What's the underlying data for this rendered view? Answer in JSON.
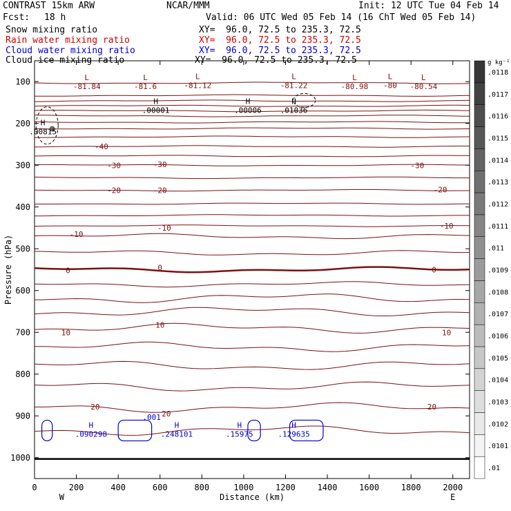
{
  "header": {
    "title": "CONTRAST 15km ARW",
    "center": "NCAR/MMM",
    "init": "Init: 12 UTC Tue 04 Feb 14",
    "fcst_label": "Fcst:",
    "fcst_value": "18 h",
    "valid": "Valid: 06 UTC Wed 05 Feb 14 (16 ChT Wed 05 Feb 14)"
  },
  "fields": [
    {
      "name": "Snow mixing ratio",
      "xy": "XY=  96.0, 72.5 to 235.3, 72.5",
      "color": "#000000"
    },
    {
      "name": "Rain water mixing ratio",
      "xy": "XY=  96.0, 72.5 to 235.3, 72.5",
      "color": "#cc0000"
    },
    {
      "name": "Cloud water mixing ratio",
      "xy": "XY=  96.0, 72.5 to 235.3, 72.5",
      "color": "#0000cc"
    },
    {
      "name": "Cloud ice mixing ratio",
      "xy": "XY=  96.0, 72.5 to 235.3, 72.5",
      "color": "#000000"
    }
  ],
  "chart_data": {
    "type": "contour",
    "xlabel": "Distance (km)",
    "ylabel": "Pressure (hPa)",
    "xlim": [
      0,
      2080
    ],
    "ylim": [
      1050,
      50
    ],
    "x_ticks": [
      0,
      200,
      400,
      600,
      800,
      1000,
      1200,
      1400,
      1600,
      1800,
      2000
    ],
    "y_ticks": [
      100,
      200,
      300,
      400,
      500,
      600,
      700,
      800,
      900,
      1000
    ],
    "x_end_labels": {
      "left": "W",
      "right": "E"
    },
    "colorbar": {
      "unit": "g kg⁻¹",
      "levels": [
        ".01",
        ".0101",
        ".0102",
        ".0103",
        ".0104",
        ".0105",
        ".0106",
        ".0107",
        ".0108",
        ".0109",
        ".011",
        ".0111",
        ".0112",
        ".0113",
        ".0114",
        ".0115",
        ".0116",
        ".0117",
        ".0118"
      ]
    },
    "temperature_contour_color": "#7a1010",
    "temperature_labels": [
      {
        "text": "-40",
        "x": 320,
        "p": 255
      },
      {
        "text": "-30",
        "x": 380,
        "p": 300
      },
      {
        "text": "-30",
        "x": 600,
        "p": 298
      },
      {
        "text": "-30",
        "x": 1830,
        "p": 300
      },
      {
        "text": "-20",
        "x": 380,
        "p": 360
      },
      {
        "text": "-20",
        "x": 600,
        "p": 360
      },
      {
        "text": "-20",
        "x": 1940,
        "p": 358
      },
      {
        "text": "-10",
        "x": 200,
        "p": 465
      },
      {
        "text": "-10",
        "x": 620,
        "p": 450
      },
      {
        "text": "-10",
        "x": 1970,
        "p": 445
      },
      {
        "text": "0",
        "x": 160,
        "p": 552
      },
      {
        "text": "0",
        "x": 600,
        "p": 545
      },
      {
        "text": "0",
        "x": 1910,
        "p": 550
      },
      {
        "text": "10",
        "x": 150,
        "p": 700
      },
      {
        "text": "10",
        "x": 600,
        "p": 682
      },
      {
        "text": "10",
        "x": 1970,
        "p": 700
      },
      {
        "text": "20",
        "x": 290,
        "p": 878
      },
      {
        "text": "20",
        "x": 630,
        "p": 895
      },
      {
        "text": "20",
        "x": 1900,
        "p": 878
      }
    ],
    "temperature_extrema": [
      {
        "kind": "L",
        "value": "-81.84",
        "x": 250,
        "p": 103
      },
      {
        "kind": "L",
        "value": "-81.6",
        "x": 530,
        "p": 103
      },
      {
        "kind": "L",
        "value": "-81.12",
        "x": 780,
        "p": 100
      },
      {
        "kind": "L",
        "value": "-81.22",
        "x": 1240,
        "p": 100
      },
      {
        "kind": "L",
        "value": "-80.98",
        "x": 1530,
        "p": 103
      },
      {
        "kind": "L",
        "value": "-80",
        "x": 1700,
        "p": 100
      },
      {
        "kind": "L",
        "value": "-80.54",
        "x": 1860,
        "p": 103
      }
    ],
    "snow_maxima": [
      {
        "kind": "H",
        "value": ".00001",
        "x": 580,
        "p": 160
      },
      {
        "kind": "H",
        "value": ".00006",
        "x": 1020,
        "p": 160
      },
      {
        "kind": "H",
        "value": ".01036",
        "x": 1240,
        "p": 160
      },
      {
        "kind": "H",
        "value": ".00815",
        "x": 40,
        "p": 211
      }
    ],
    "cloud_water_maxima": [
      {
        "kind": "H",
        "value": ".090298",
        "x": 270,
        "p": 935
      },
      {
        "kind": "H",
        "value": ".248101",
        "x": 680,
        "p": 935
      },
      {
        "kind": "H",
        "value": ".15975",
        "x": 980,
        "p": 935
      },
      {
        "kind": "H",
        "value": ".129635",
        "x": 1240,
        "p": 935
      }
    ],
    "cloud_water_contour_labels": [
      {
        "text": ".001",
        "x": 560,
        "p": 903
      }
    ],
    "ground_level_p": 1003
  }
}
